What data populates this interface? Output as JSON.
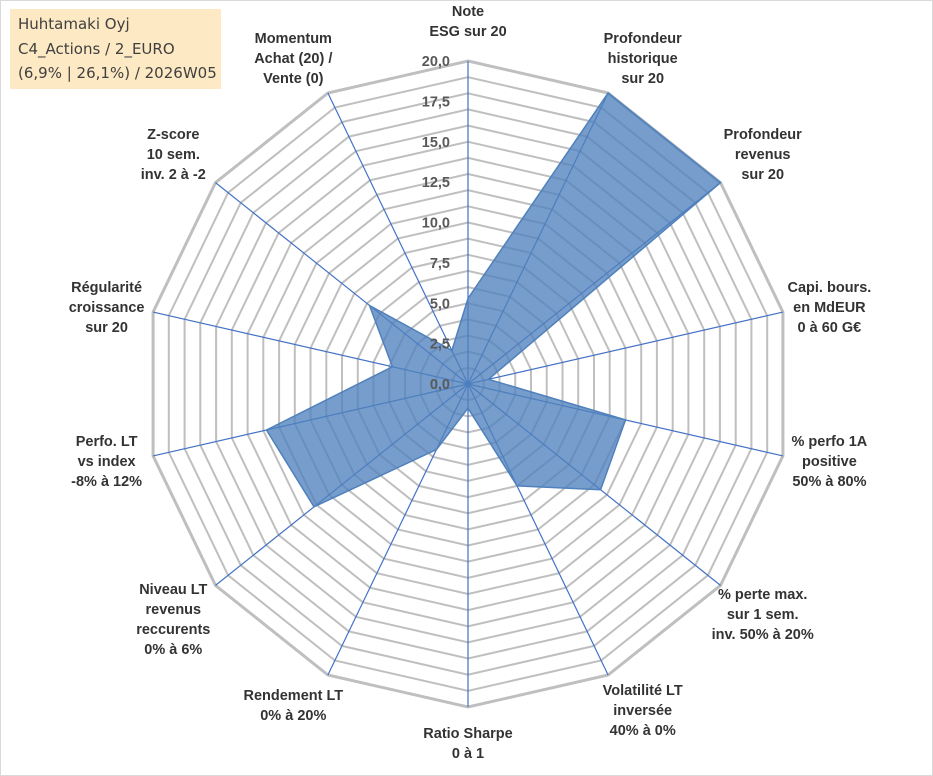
{
  "info_box": {
    "line1": "Huhtamaki Oyj",
    "line2": "C4_Actions / 2_EURO",
    "line3": "(6,9% | 26,1%) / 2026W05"
  },
  "colors": {
    "area_fill": "#4f81bd",
    "area_stroke": "#4f81bd",
    "grid": "#bfbfbf",
    "spoke": "#4472c4",
    "info_bg": "#fde9c4"
  },
  "chart_data": {
    "type": "radar",
    "title": "",
    "rmin": 0,
    "rmax": 20,
    "ticks": [
      "0,0",
      "2,5",
      "5,0",
      "7,5",
      "10,0",
      "12,5",
      "15,0",
      "17,5",
      "20,0"
    ],
    "tick_values": [
      0,
      2.5,
      5,
      7.5,
      10,
      12.5,
      15,
      17.5,
      20
    ],
    "axes": [
      {
        "label": [
          "Note",
          "ESG sur 20"
        ],
        "value": 5.3
      },
      {
        "label": [
          "Profondeur",
          "historique",
          "sur 20"
        ],
        "value": 20
      },
      {
        "label": [
          "Profondeur",
          "revenus",
          "sur 20"
        ],
        "value": 20
      },
      {
        "label": [
          "Capi. bours.",
          "en MdEUR",
          "0 à 60 G€"
        ],
        "value": 1.3
      },
      {
        "label": [
          "% perfo 1A",
          "positive",
          "50% à 80%"
        ],
        "value": 10
      },
      {
        "label": [
          "% perte max.",
          "sur 1 sem.",
          "inv. 50% à 20%"
        ],
        "value": 10.5
      },
      {
        "label": [
          "Volatilité LT",
          "inversée",
          "40% à 0%"
        ],
        "value": 7
      },
      {
        "label": [
          "Ratio Sharpe",
          "0 à 1"
        ],
        "value": 1.5
      },
      {
        "label": [
          "Rendement LT",
          "0% à 20%"
        ],
        "value": 4.5
      },
      {
        "label": [
          "Niveau LT",
          "revenus",
          "reccurents",
          "0% à 6%"
        ],
        "value": 12.2
      },
      {
        "label": [
          "Perfo. LT",
          "vs index",
          "-8% à 12%"
        ],
        "value": 12.8
      },
      {
        "label": [
          "Régularité",
          "croissance",
          "sur 20"
        ],
        "value": 4.8
      },
      {
        "label": [
          "Z-score",
          "10 sem.",
          "inv. 2 à -2"
        ],
        "value": 7.8
      },
      {
        "label": [
          "Momentum",
          "Achat (20) /",
          "Vente (0)"
        ],
        "value": 2.3
      }
    ]
  }
}
